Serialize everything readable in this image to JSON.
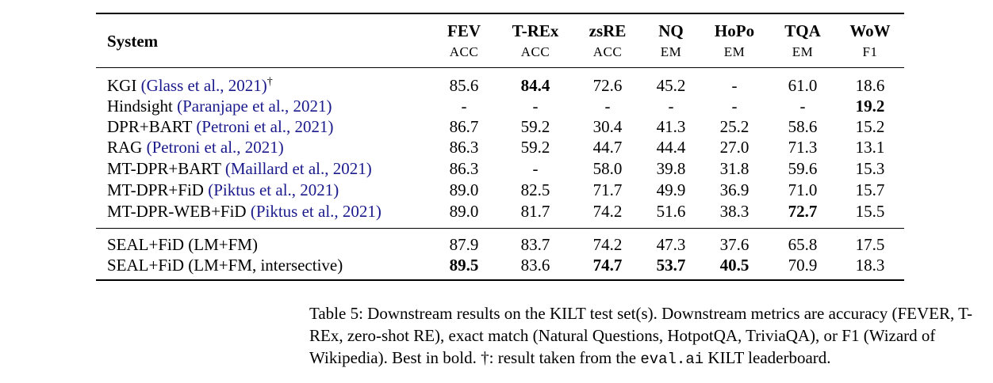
{
  "table": {
    "system_header": "System",
    "columns": [
      {
        "name": "FEV",
        "metric": "ACC"
      },
      {
        "name": "T-REx",
        "metric": "ACC"
      },
      {
        "name": "zsRE",
        "metric": "ACC"
      },
      {
        "name": "NQ",
        "metric": "EM"
      },
      {
        "name": "HoPo",
        "metric": "EM"
      },
      {
        "name": "TQA",
        "metric": "EM"
      },
      {
        "name": "WoW",
        "metric": "F1"
      }
    ],
    "rows": [
      {
        "system": "KGI",
        "cite": "(Glass et al., 2021)",
        "mark": "†",
        "values": [
          "85.6",
          "84.4",
          "72.6",
          "45.2",
          "-",
          "61.0",
          "18.6"
        ],
        "bold": [
          1
        ]
      },
      {
        "system": "Hindsight",
        "cite": "(Paranjape et al., 2021)",
        "mark": "",
        "values": [
          "-",
          "-",
          "-",
          "-",
          "-",
          "-",
          "19.2"
        ],
        "bold": [
          6
        ]
      },
      {
        "system": "DPR+BART",
        "cite": "(Petroni et al., 2021)",
        "mark": "",
        "values": [
          "86.7",
          "59.2",
          "30.4",
          "41.3",
          "25.2",
          "58.6",
          "15.2"
        ],
        "bold": []
      },
      {
        "system": "RAG",
        "cite": "(Petroni et al., 2021)",
        "mark": "",
        "values": [
          "86.3",
          "59.2",
          "44.7",
          "44.4",
          "27.0",
          "71.3",
          "13.1"
        ],
        "bold": []
      },
      {
        "system": "MT-DPR+BART",
        "cite": "(Maillard et al., 2021)",
        "mark": "",
        "values": [
          "86.3",
          "-",
          "58.0",
          "39.8",
          "31.8",
          "59.6",
          "15.3"
        ],
        "bold": []
      },
      {
        "system": "MT-DPR+FiD",
        "cite": "(Piktus et al., 2021)",
        "mark": "",
        "values": [
          "89.0",
          "82.5",
          "71.7",
          "49.9",
          "36.9",
          "71.0",
          "15.7"
        ],
        "bold": []
      },
      {
        "system": "MT-DPR-WEB+FiD",
        "cite": "(Piktus et al., 2021)",
        "mark": "",
        "values": [
          "89.0",
          "81.7",
          "74.2",
          "51.6",
          "38.3",
          "72.7",
          "15.5"
        ],
        "bold": [
          5
        ]
      },
      {
        "system": "SEAL+FiD (LM+FM)",
        "cite": "",
        "mark": "",
        "values": [
          "87.9",
          "83.7",
          "74.2",
          "47.3",
          "37.6",
          "65.8",
          "17.5"
        ],
        "bold": []
      },
      {
        "system": "SEAL+FiD (LM+FM, intersective)",
        "cite": "",
        "mark": "",
        "values": [
          "89.5",
          "83.6",
          "74.7",
          "53.7",
          "40.5",
          "70.9",
          "18.3"
        ],
        "bold": [
          0,
          2,
          3,
          4
        ]
      }
    ]
  },
  "caption": {
    "part1": "Table 5: Downstream results on the KILT test set(s). Downstream metrics are accuracy (FEVER, T-REx, zero-shot RE), exact match (Natural Questions, HotpotQA, TriviaQA), or F1 (Wizard of Wikipedia). Best in bold. †: result taken from the ",
    "code": "eval.ai",
    "part2": " KILT leaderboard."
  }
}
